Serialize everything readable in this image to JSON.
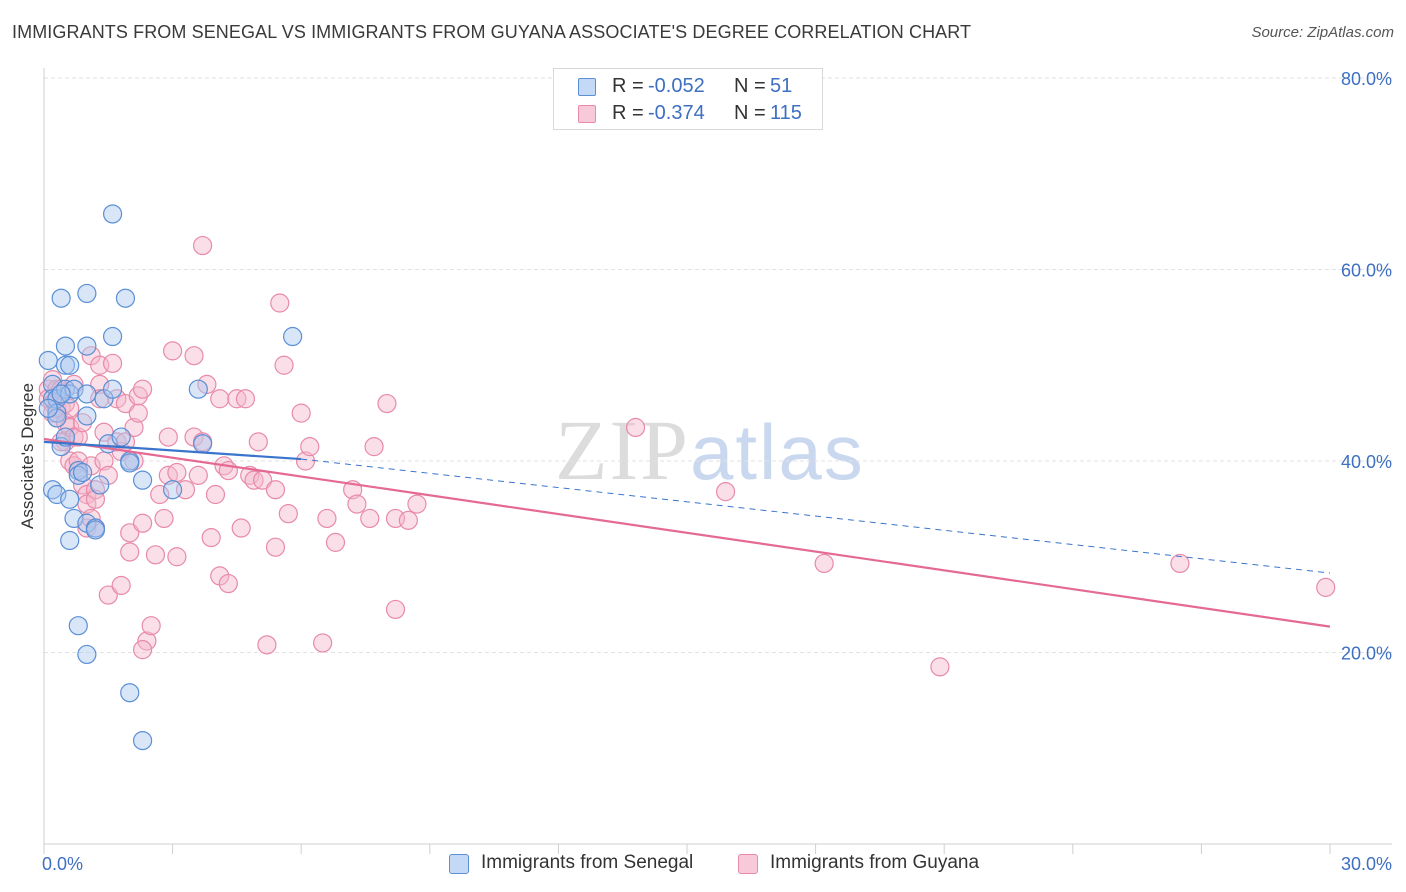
{
  "header": {
    "title": "IMMIGRANTS FROM SENEGAL VS IMMIGRANTS FROM GUYANA ASSOCIATE'S DEGREE CORRELATION CHART",
    "source": "Source: ZipAtlas.com"
  },
  "watermark": {
    "zip": "ZIP",
    "atlas": "atlas"
  },
  "legend_top": {
    "rows": [
      {
        "r_label": "R =",
        "r_value": "-0.052",
        "n_label": "N =",
        "n_value": "51"
      },
      {
        "r_label": "R =",
        "r_value": "-0.374",
        "n_label": "N =",
        "n_value": "115"
      }
    ]
  },
  "legend_bottom": {
    "items": [
      {
        "label": "Immigrants from Senegal"
      },
      {
        "label": "Immigrants from Guyana"
      }
    ]
  },
  "colors": {
    "senegal_fill": "#a9c8f0",
    "senegal_stroke": "#5b8fd6",
    "senegal_line": "#3a74cc",
    "guyana_fill": "#f5b8cc",
    "guyana_stroke": "#e88aa8",
    "guyana_line": "#e46a94",
    "grid": "#e2e2e2",
    "axis_label": "#3d6fc2"
  },
  "chart_data": {
    "type": "scatter",
    "title": "IMMIGRANTS FROM SENEGAL VS IMMIGRANTS FROM GUYANA ASSOCIATE'S DEGREE CORRELATION CHART",
    "xlabel": "",
    "ylabel": "Associate's Degree",
    "xlim": [
      0,
      30
    ],
    "ylim": [
      0,
      80
    ],
    "x_tick_labels": [
      "0.0%",
      "30.0%"
    ],
    "y_ticks": [
      20,
      40,
      60,
      80
    ],
    "y_tick_labels": [
      "20.0%",
      "40.0%",
      "60.0%",
      "80.0%"
    ],
    "grid": true,
    "series": [
      {
        "name": "Immigrants from Senegal",
        "R": -0.052,
        "N": 51,
        "trend": {
          "x": [
            0,
            6
          ],
          "y": [
            42.0,
            40.2
          ],
          "extended_to": [
            30,
            28.3
          ]
        },
        "points": [
          [
            0.1,
            50.5
          ],
          [
            0.2,
            48.0
          ],
          [
            0.2,
            46.5
          ],
          [
            0.3,
            46.5
          ],
          [
            0.3,
            45.0
          ],
          [
            0.3,
            44.5
          ],
          [
            0.2,
            37.0
          ],
          [
            0.3,
            36.5
          ],
          [
            0.4,
            57.0
          ],
          [
            0.5,
            52.0
          ],
          [
            0.5,
            50.0
          ],
          [
            0.6,
            50.0
          ],
          [
            0.5,
            47.5
          ],
          [
            0.6,
            47.0
          ],
          [
            0.7,
            47.5
          ],
          [
            0.4,
            41.5
          ],
          [
            0.5,
            42.5
          ],
          [
            0.6,
            36.0
          ],
          [
            0.7,
            34.0
          ],
          [
            0.6,
            31.7
          ],
          [
            0.8,
            39.0
          ],
          [
            0.8,
            38.5
          ],
          [
            0.9,
            38.8
          ],
          [
            1.0,
            33.5
          ],
          [
            0.8,
            22.8
          ],
          [
            1.0,
            19.8
          ],
          [
            1.0,
            57.5
          ],
          [
            1.0,
            52.0
          ],
          [
            1.0,
            47.0
          ],
          [
            1.0,
            44.7
          ],
          [
            1.2,
            33.0
          ],
          [
            1.2,
            32.8
          ],
          [
            1.3,
            37.5
          ],
          [
            1.4,
            46.5
          ],
          [
            1.5,
            41.8
          ],
          [
            1.6,
            65.8
          ],
          [
            1.9,
            57.0
          ],
          [
            1.6,
            53.0
          ],
          [
            1.6,
            47.5
          ],
          [
            1.8,
            42.5
          ],
          [
            2.0,
            40.0
          ],
          [
            2.0,
            39.8
          ],
          [
            2.3,
            38.0
          ],
          [
            2.0,
            15.8
          ],
          [
            2.3,
            10.8
          ],
          [
            3.0,
            37.0
          ],
          [
            3.6,
            47.5
          ],
          [
            3.7,
            41.8
          ],
          [
            5.8,
            53.0
          ],
          [
            0.1,
            45.5
          ],
          [
            0.4,
            47.0
          ]
        ]
      },
      {
        "name": "Immigrants from Guyana",
        "R": -0.374,
        "N": 115,
        "trend": {
          "x": [
            0,
            30
          ],
          "y": [
            42.3,
            22.7
          ]
        },
        "points": [
          [
            0.1,
            47.5
          ],
          [
            0.1,
            46.5
          ],
          [
            0.2,
            48.5
          ],
          [
            0.2,
            46.0
          ],
          [
            0.2,
            45.0
          ],
          [
            0.3,
            47.5
          ],
          [
            0.3,
            45.5
          ],
          [
            0.3,
            44.5
          ],
          [
            0.4,
            47.5
          ],
          [
            0.4,
            45.5
          ],
          [
            0.5,
            46.0
          ],
          [
            0.5,
            44.0
          ],
          [
            0.5,
            42.0
          ],
          [
            0.6,
            45.5
          ],
          [
            0.6,
            43.5
          ],
          [
            0.6,
            40.0
          ],
          [
            0.7,
            42.5
          ],
          [
            0.7,
            39.5
          ],
          [
            0.8,
            42.5
          ],
          [
            0.8,
            40.0
          ],
          [
            0.8,
            39.0
          ],
          [
            0.9,
            37.5
          ],
          [
            1.0,
            36.5
          ],
          [
            1.0,
            35.5
          ],
          [
            1.0,
            33.0
          ],
          [
            1.1,
            39.5
          ],
          [
            1.1,
            34.0
          ],
          [
            1.2,
            37.0
          ],
          [
            1.2,
            33.0
          ],
          [
            1.1,
            51.0
          ],
          [
            1.3,
            50.0
          ],
          [
            1.3,
            48.0
          ],
          [
            1.3,
            46.5
          ],
          [
            1.4,
            43.0
          ],
          [
            1.4,
            40.0
          ],
          [
            1.5,
            38.5
          ],
          [
            1.5,
            26.0
          ],
          [
            1.6,
            50.2
          ],
          [
            1.7,
            46.5
          ],
          [
            1.7,
            42.0
          ],
          [
            1.8,
            41.0
          ],
          [
            1.8,
            27.0
          ],
          [
            1.9,
            46.0
          ],
          [
            1.9,
            42.0
          ],
          [
            2.0,
            32.5
          ],
          [
            2.0,
            30.5
          ],
          [
            2.1,
            43.5
          ],
          [
            2.1,
            40.0
          ],
          [
            2.2,
            45.0
          ],
          [
            2.2,
            46.8
          ],
          [
            2.3,
            47.5
          ],
          [
            2.3,
            33.5
          ],
          [
            2.4,
            21.2
          ],
          [
            2.3,
            20.3
          ],
          [
            2.5,
            22.8
          ],
          [
            2.6,
            30.2
          ],
          [
            2.7,
            36.5
          ],
          [
            2.8,
            34.0
          ],
          [
            2.9,
            42.5
          ],
          [
            2.9,
            38.5
          ],
          [
            3.0,
            51.5
          ],
          [
            3.1,
            38.8
          ],
          [
            3.1,
            30.0
          ],
          [
            3.3,
            37.0
          ],
          [
            3.5,
            51.0
          ],
          [
            3.5,
            42.5
          ],
          [
            3.6,
            38.5
          ],
          [
            3.7,
            62.5
          ],
          [
            3.7,
            42.0
          ],
          [
            3.8,
            48.0
          ],
          [
            3.9,
            32.0
          ],
          [
            4.0,
            36.5
          ],
          [
            4.1,
            46.5
          ],
          [
            4.1,
            28.0
          ],
          [
            4.2,
            39.5
          ],
          [
            4.3,
            39.0
          ],
          [
            4.3,
            27.2
          ],
          [
            4.5,
            46.5
          ],
          [
            4.6,
            33.0
          ],
          [
            4.7,
            46.5
          ],
          [
            4.8,
            38.5
          ],
          [
            4.9,
            38.0
          ],
          [
            5.0,
            42.0
          ],
          [
            5.1,
            38.0
          ],
          [
            5.2,
            20.8
          ],
          [
            5.4,
            37.0
          ],
          [
            5.4,
            31.0
          ],
          [
            5.5,
            56.5
          ],
          [
            5.6,
            50.0
          ],
          [
            5.7,
            34.5
          ],
          [
            6.0,
            45.0
          ],
          [
            6.1,
            40.0
          ],
          [
            6.2,
            41.5
          ],
          [
            6.5,
            21.0
          ],
          [
            6.6,
            34.0
          ],
          [
            6.8,
            31.5
          ],
          [
            7.2,
            37.0
          ],
          [
            7.3,
            35.5
          ],
          [
            7.6,
            34.0
          ],
          [
            7.7,
            41.5
          ],
          [
            8.0,
            46.0
          ],
          [
            8.2,
            24.5
          ],
          [
            8.2,
            34.0
          ],
          [
            8.5,
            33.8
          ],
          [
            8.7,
            35.5
          ],
          [
            13.8,
            43.5
          ],
          [
            15.9,
            36.8
          ],
          [
            18.2,
            29.3
          ],
          [
            20.9,
            18.5
          ],
          [
            26.5,
            29.3
          ],
          [
            29.9,
            26.8
          ],
          [
            0.4,
            42.0
          ],
          [
            0.9,
            44.0
          ],
          [
            1.2,
            36.0
          ],
          [
            0.7,
            48.0
          ]
        ]
      }
    ]
  }
}
